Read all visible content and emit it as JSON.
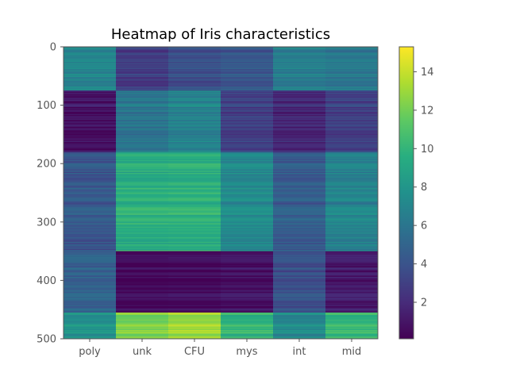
{
  "chart_data": {
    "type": "heatmap",
    "title": "Heatmap of Iris characteristics",
    "xlabel": "",
    "ylabel": "",
    "columns": [
      "poly",
      "unk",
      "CFU",
      "mys",
      "int",
      "mid"
    ],
    "row_count": 500,
    "y_ticks": [
      0,
      100,
      200,
      300,
      400,
      500
    ],
    "colorbar": {
      "colormap": "viridis",
      "range": [
        0.1,
        15.3
      ],
      "ticks": [
        2,
        4,
        6,
        8,
        10,
        12,
        14
      ]
    },
    "blocks": [
      {
        "rows": [
          0,
          75
        ],
        "values": [
          7.0,
          2.8,
          3.8,
          4.2,
          6.5,
          6.2
        ]
      },
      {
        "rows": [
          75,
          180
        ],
        "values": [
          0.8,
          6.0,
          6.8,
          3.0,
          1.8,
          3.0
        ]
      },
      {
        "rows": [
          180,
          350
        ],
        "values": [
          4.2,
          9.5,
          9.6,
          7.2,
          4.5,
          6.8
        ]
      },
      {
        "rows": [
          350,
          455
        ],
        "values": [
          4.8,
          0.4,
          0.5,
          0.8,
          3.8,
          1.2
        ]
      },
      {
        "rows": [
          455,
          500
        ],
        "values": [
          7.8,
          12.2,
          13.0,
          10.0,
          7.2,
          10.2
        ]
      }
    ],
    "grid": false,
    "legend": "none"
  },
  "colors": {
    "spine": "#555555",
    "text": "#555555",
    "title": "#000000"
  }
}
